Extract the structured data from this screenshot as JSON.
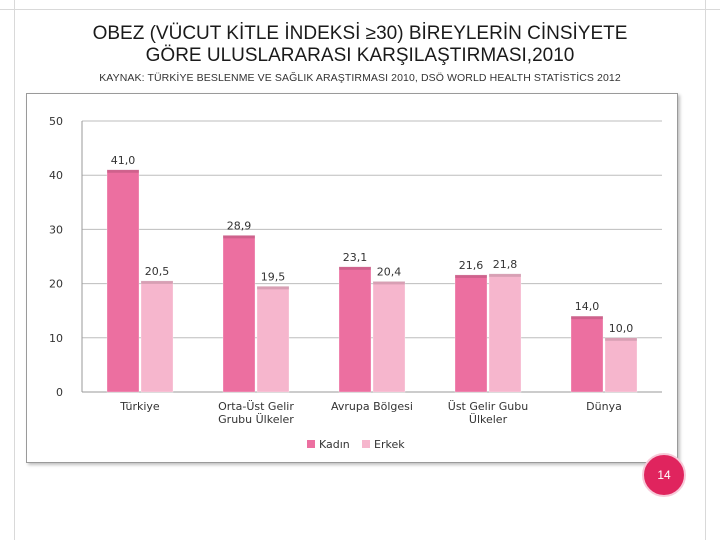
{
  "slide": {
    "title_line1": "OBEZ (VÜCUT KİTLE İNDEKSİ ≥30) BİREYLERİN CİNSİYETE",
    "title_line2": "GÖRE ULUSLARARASI KARŞILAŞTIRMASI,2010",
    "source": "KAYNAK: TÜRKİYE BESLENME VE SAĞLIK ARAŞTIRMASI 2010, DSÖ WORLD HEALTH STATİSTİCS 2012",
    "page_number": "14",
    "accent_color": "#e0245e"
  },
  "chart_data": {
    "type": "bar",
    "title": "",
    "xlabel": "",
    "ylabel": "",
    "ylim": [
      0,
      50
    ],
    "yticks": [
      "0",
      "10",
      "20",
      "30",
      "40",
      "50"
    ],
    "grid": true,
    "legend_position": "bottom",
    "categories": [
      [
        "Türkiye"
      ],
      [
        "Orta-Üst Gelir",
        "Grubu Ülkeler"
      ],
      [
        "Avrupa Bölgesi"
      ],
      [
        "Üst Gelir Gubu",
        "Ülkeler"
      ],
      [
        "Dünya"
      ]
    ],
    "series": [
      {
        "name": "Kadın",
        "color": "#ec6fa0",
        "values": [
          41.0,
          28.9,
          23.1,
          21.6,
          14.0
        ],
        "labels": [
          "41,0",
          "28,9",
          "23,1",
          "21,6",
          "14,0"
        ]
      },
      {
        "name": "Erkek",
        "color": "#f6b6cd",
        "values": [
          20.5,
          19.5,
          20.4,
          21.8,
          10.0
        ],
        "labels": [
          "20,5",
          "19,5",
          "20,4",
          "21,8",
          "10,0"
        ]
      }
    ]
  }
}
